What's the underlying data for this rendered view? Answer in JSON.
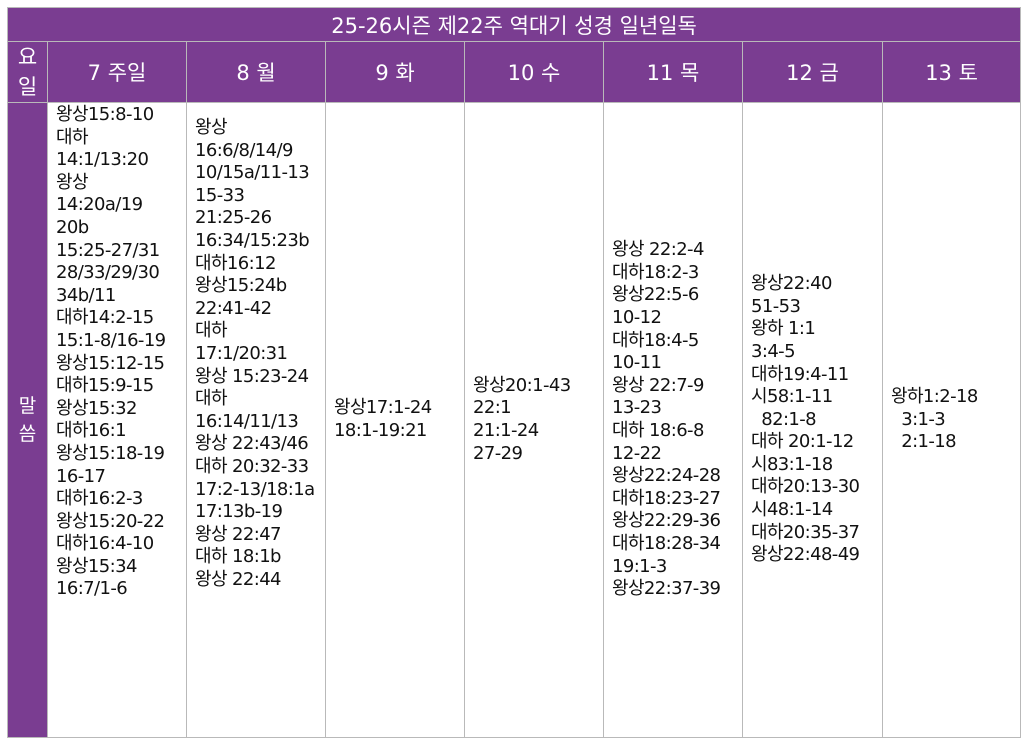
{
  "title": "25-26시즌 제22주 역대기 성경 일년일독",
  "header": {
    "day_label": "요\n일",
    "days": [
      "7 주일",
      "8 월",
      "9 화",
      "10 수",
      "11 목",
      "12 금",
      "13 토"
    ]
  },
  "row_label": "말\n씀",
  "readings": [
    [
      "왕상15:8-10",
      "대하",
      "14:1/13:20",
      "왕상",
      "14:20a/19",
      "20b",
      "15:25-27/31",
      "28/33/29/30",
      "34b/11",
      "대하14:2-15",
      "15:1-8/16-19",
      "왕상15:12-15",
      "대하15:9-15",
      "왕상15:32",
      "대하16:1",
      "왕상15:18-19",
      "16-17",
      "대하16:2-3",
      "왕상15:20-22",
      "대하16:4-10",
      "왕상15:34",
      "16:7/1-6"
    ],
    [
      "왕상",
      "16:6/8/14/9",
      "10/15a/11-13",
      "15-33",
      "21:25-26",
      "16:34/15:23b",
      "대하16:12",
      "왕상15:24b",
      "22:41-42",
      "대하",
      "17:1/20:31",
      "왕상 15:23-24",
      "대하",
      "16:14/11/13",
      "왕상 22:43/46",
      "대하 20:32-33",
      "17:2-13/18:1a",
      "17:13b-19",
      "왕상 22:47",
      "대하 18:1b",
      "왕상 22:44"
    ],
    [
      "왕상17:1-24",
      "18:1-19:21"
    ],
    [
      "왕상20:1-43",
      "22:1",
      "21:1-24",
      "27-29"
    ],
    [
      "왕상 22:2-4",
      "대하18:2-3",
      "왕상22:5-6",
      "10-12",
      "대하18:4-5",
      "10-11",
      "왕상 22:7-9",
      "13-23",
      "대하 18:6-8",
      "12-22",
      "왕상22:24-28",
      "대하18:23-27",
      "왕상22:29-36",
      "대하18:28-34",
      "19:1-3",
      "왕상22:37-39"
    ],
    [
      "왕상22:40",
      "51-53",
      "왕하 1:1",
      "3:4-5",
      "대하19:4-11",
      "시58:1-11",
      "  82:1-8",
      "대하 20:1-12",
      "시83:1-18",
      "대하20:13-30",
      "시48:1-14",
      "대하20:35-37",
      "왕상22:48-49"
    ],
    [
      "왕하1:2-18",
      "  3:1-3",
      "  2:1-18"
    ]
  ],
  "colors": {
    "header_bg": "#7a3d91",
    "header_text": "#ffffff",
    "border": "#b9b9b9"
  }
}
